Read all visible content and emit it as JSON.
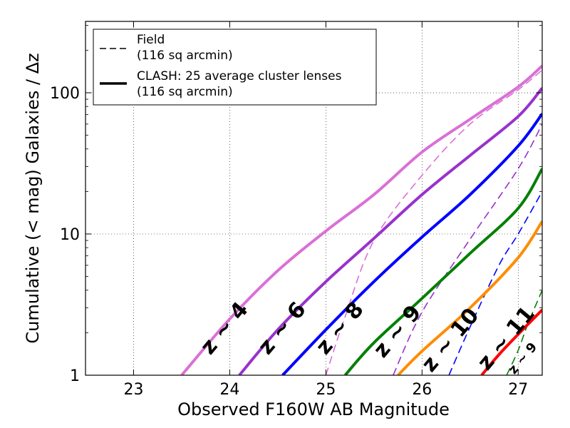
{
  "chart_data": {
    "type": "line",
    "xlabel": "Observed F160W AB Magnitude",
    "ylabel": "Cumulative (< mag) Galaxies / Δz",
    "xlim": [
      22.5,
      27.25
    ],
    "ylim": [
      1,
      320
    ],
    "yscale": "log",
    "grid": true,
    "x_ticks": [
      23,
      24,
      25,
      26,
      27
    ],
    "x_tick_labels": [
      "23",
      "24",
      "25",
      "26",
      "27"
    ],
    "y_ticks": [
      1,
      10,
      100
    ],
    "y_tick_labels": [
      "1",
      "10",
      "100"
    ],
    "legend": {
      "placement": "top-left",
      "entries": [
        {
          "style": "dashed",
          "line1": "Field",
          "line2": "(116 sq arcmin)"
        },
        {
          "style": "solid",
          "line1": "CLASH: 25 average cluster lenses",
          "line2": "(116 sq arcmin)"
        }
      ]
    },
    "series": [
      {
        "label": "z ~ 4",
        "style": "solid",
        "color": "#da70d6",
        "points": [
          [
            23.5,
            1.0
          ],
          [
            24.0,
            2.5
          ],
          [
            24.5,
            5.5
          ],
          [
            25.0,
            10.5
          ],
          [
            25.5,
            19
          ],
          [
            26.0,
            38
          ],
          [
            26.5,
            65
          ],
          [
            27.0,
            110
          ],
          [
            27.25,
            155
          ]
        ]
      },
      {
        "label": "z ~ 6",
        "style": "solid",
        "color": "#9932cc",
        "points": [
          [
            24.1,
            1.0
          ],
          [
            24.5,
            2.1
          ],
          [
            25.0,
            4.6
          ],
          [
            25.5,
            9.3
          ],
          [
            26.0,
            19
          ],
          [
            26.5,
            36
          ],
          [
            27.0,
            68
          ],
          [
            27.25,
            108
          ]
        ]
      },
      {
        "label": "z ~ 8",
        "style": "solid",
        "color": "#0000ff",
        "points": [
          [
            24.55,
            1.0
          ],
          [
            25.0,
            2.1
          ],
          [
            25.5,
            4.6
          ],
          [
            26.0,
            9.5
          ],
          [
            26.5,
            19
          ],
          [
            27.0,
            42
          ],
          [
            27.25,
            71
          ]
        ]
      },
      {
        "label": "z ~ 9",
        "style": "solid",
        "color": "#008000",
        "points": [
          [
            25.2,
            1.0
          ],
          [
            25.5,
            1.7
          ],
          [
            26.0,
            3.5
          ],
          [
            26.5,
            7.3
          ],
          [
            27.0,
            15.2
          ],
          [
            27.25,
            29
          ]
        ]
      },
      {
        "label": "z ~ 10",
        "style": "solid",
        "color": "#ff8c00",
        "points": [
          [
            25.75,
            1.0
          ],
          [
            26.0,
            1.48
          ],
          [
            26.5,
            3.0
          ],
          [
            27.0,
            6.8
          ],
          [
            27.25,
            12.3
          ]
        ]
      },
      {
        "label": "z ~ 11",
        "style": "solid",
        "color": "#ff0000",
        "points": [
          [
            26.62,
            1.0
          ],
          [
            26.8,
            1.4
          ],
          [
            27.0,
            1.95
          ],
          [
            27.25,
            2.9
          ]
        ]
      },
      {
        "label": "z ~ 4",
        "style": "dashed",
        "color": "#da70d6",
        "points": [
          [
            25.0,
            1.0
          ],
          [
            25.2,
            2.6
          ],
          [
            25.5,
            9.0
          ],
          [
            26.0,
            26
          ],
          [
            26.5,
            60
          ],
          [
            27.0,
            105
          ],
          [
            27.25,
            145
          ]
        ]
      },
      {
        "label": "z ~ 6",
        "style": "dashed",
        "color": "#9932cc",
        "points": [
          [
            25.7,
            1.0
          ],
          [
            26.0,
            2.8
          ],
          [
            26.5,
            9.2
          ],
          [
            27.0,
            29
          ],
          [
            27.25,
            60
          ]
        ]
      },
      {
        "label": "z ~ 8",
        "style": "dashed",
        "color": "#0000ff",
        "points": [
          [
            26.28,
            1.0
          ],
          [
            26.5,
            2.2
          ],
          [
            26.8,
            6.0
          ],
          [
            27.0,
            10.0
          ],
          [
            27.25,
            20
          ]
        ]
      },
      {
        "label": "z ~ 9",
        "style": "dashed",
        "color": "#008000",
        "points": [
          [
            26.88,
            1.0
          ],
          [
            27.0,
            1.5
          ],
          [
            27.1,
            2.3
          ],
          [
            27.25,
            4.0
          ]
        ]
      }
    ],
    "curve_labels": [
      {
        "text": "z ~ 4",
        "x": 24.0,
        "y": 2.0,
        "size": 30
      },
      {
        "text": "z ~ 6",
        "x": 24.6,
        "y": 2.0,
        "size": 30
      },
      {
        "text": "z ~ 8",
        "x": 25.2,
        "y": 2.0,
        "size": 30
      },
      {
        "text": "z ~ 9",
        "x": 25.8,
        "y": 1.9,
        "size": 30
      },
      {
        "text": "z ~ 10",
        "x": 26.35,
        "y": 1.65,
        "size": 30
      },
      {
        "text": "z ~ 11",
        "x": 26.93,
        "y": 1.7,
        "size": 30
      },
      {
        "text": "z ~ 9",
        "x": 27.08,
        "y": 1.26,
        "size": 18
      }
    ]
  }
}
